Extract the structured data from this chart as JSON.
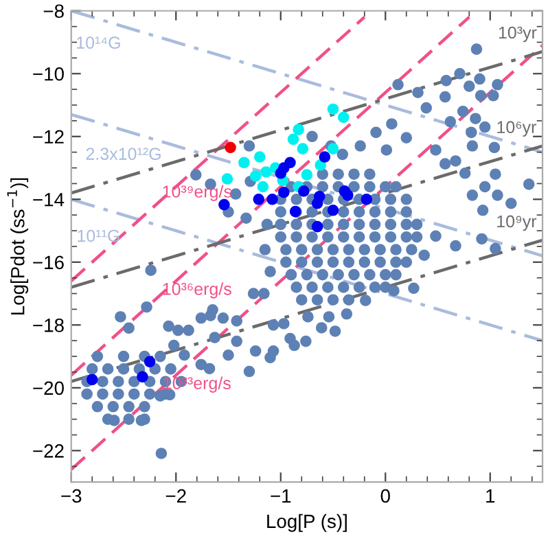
{
  "chart_data": {
    "type": "scatter",
    "xlabel": "Log[P (s)]",
    "ylabel": "Log[Pdot (ss$^{−1}$)]",
    "xlim": [
      -3,
      1.5
    ],
    "ylim": [
      -23,
      -8
    ],
    "xticks": [
      -3,
      -2,
      -1,
      0,
      1
    ],
    "yticks": [
      -22,
      -20,
      -18,
      -16,
      -14,
      -12,
      -10,
      -8
    ],
    "grid": false,
    "legend": false,
    "series": [
      {
        "type": "line",
        "line_style": "dashdot",
        "color": "#a9bbdd",
        "x": [
          -3,
          1.5
        ],
        "values": [
          -8.0,
          -12.5
        ]
      },
      {
        "type": "line",
        "line_style": "dashdot",
        "color": "#a9bbdd",
        "x": [
          -3,
          1.5
        ],
        "values": [
          -11.3,
          -15.8
        ]
      },
      {
        "type": "line",
        "line_style": "dashdot",
        "color": "#a9bbdd",
        "x": [
          -3,
          1.5
        ],
        "values": [
          -14.0,
          -18.5
        ]
      },
      {
        "type": "line",
        "line_style": "dashed",
        "color": "#f0508a",
        "x": [
          -3,
          -0.2
        ],
        "values": [
          -16.6,
          -8.2
        ]
      },
      {
        "type": "line",
        "line_style": "dashed",
        "color": "#f0508a",
        "x": [
          -3,
          0.8
        ],
        "values": [
          -19.6,
          -8.2
        ]
      },
      {
        "type": "line",
        "line_style": "dashed",
        "color": "#f0508a",
        "x": [
          -3,
          1.5
        ],
        "values": [
          -22.6,
          -9.1
        ]
      },
      {
        "type": "line",
        "line_style": "dashdot",
        "color": "#6b6b6b",
        "x": [
          -3,
          1.5
        ],
        "values": [
          -13.8,
          -9.3
        ]
      },
      {
        "type": "line",
        "line_style": "dashdot",
        "color": "#6b6b6b",
        "x": [
          -3,
          1.5
        ],
        "values": [
          -16.8,
          -12.3
        ]
      },
      {
        "type": "line",
        "line_style": "dashdot",
        "color": "#6b6b6b",
        "x": [
          -3,
          1.5
        ],
        "values": [
          -19.8,
          -15.3
        ]
      },
      {
        "marker": "circle",
        "color": "#5e81b5",
        "x": [
          -0.6,
          -0.45,
          -0.3,
          -0.15,
          -0.9,
          -0.75,
          -0.6,
          -0.45,
          -0.3,
          -0.15,
          0.0,
          0.1,
          -1.0,
          -0.85,
          -0.7,
          -0.55,
          -0.4,
          -0.25,
          -0.1,
          0.05,
          0.2,
          -1.0,
          -0.85,
          -0.7,
          -0.55,
          -0.4,
          -0.25,
          -0.1,
          0.05,
          0.2,
          -1.0,
          -0.85,
          -0.7,
          -0.55,
          -0.4,
          -0.25,
          -0.1,
          0.05,
          0.2,
          0.3,
          -1.0,
          -0.85,
          -0.7,
          -0.55,
          -0.4,
          -0.25,
          -0.1,
          0.05,
          0.2,
          0.3,
          -0.95,
          -0.8,
          -0.65,
          -0.5,
          -0.35,
          -0.2,
          -0.05,
          0.1,
          0.25,
          -0.95,
          -0.8,
          -0.65,
          -0.5,
          -0.35,
          -0.2,
          -0.05,
          0.1,
          0.2,
          -0.9,
          -0.75,
          -0.6,
          -0.45,
          -0.3,
          -0.15,
          0.0,
          0.1,
          -0.85,
          -0.7,
          -0.55,
          -0.4,
          -0.25,
          -0.1,
          0.0,
          -0.8,
          -0.65,
          -0.5,
          -0.35,
          -1.13,
          -1.15,
          -1.1,
          0.87,
          0.71,
          0.58,
          0.8,
          0.9,
          1.07,
          1.03,
          0.91,
          0.57,
          0.31,
          0.12,
          0.39,
          0.74,
          0.86,
          0.62,
          0.82,
          0.95,
          0.83,
          1.04,
          0.06,
          0.2,
          -0.09,
          -0.24,
          0.01,
          0.48,
          0.67,
          0.57,
          0.76,
          1.05,
          1.37,
          0.95,
          0.93,
          0.83,
          -0.7,
          -0.52,
          -0.41,
          1.07,
          1.2,
          0.92,
          1.05,
          0.67,
          0.37,
          0.48,
          -1.3,
          -1.81,
          -1.67,
          -1.43,
          -1.29,
          -1.5,
          -1.33,
          -2.24,
          -2.75,
          -2.5,
          -2.3,
          -2.15,
          -2.8,
          -2.65,
          -2.5,
          -2.35,
          -2.2,
          -2.05,
          -2.85,
          -2.7,
          -2.55,
          -2.4,
          -2.25,
          -2.1,
          -1.95,
          -2.85,
          -2.7,
          -2.55,
          -2.4,
          -2.25,
          -2.1,
          -2.75,
          -2.6,
          -2.45,
          -2.3,
          -2.65,
          -2.45,
          -2.3,
          -2.28,
          -2.53,
          -2.45,
          -2.07,
          -1.98,
          -1.88,
          -1.76,
          -1.65,
          -1.67,
          -1.55,
          -1.42,
          -1.26,
          -1.16,
          -1.63,
          -1.42,
          -1.24,
          -1.5,
          -1.76,
          -1.92,
          -2.02,
          -1.68,
          -1.3,
          -1.1,
          -2.15,
          -2.06,
          -2.14,
          -2.33,
          -2.59,
          -1.07,
          -0.97,
          -0.91,
          -0.87,
          -0.76,
          -0.61,
          -0.48,
          -0.54,
          -0.37,
          -0.19,
          0.08,
          0.27,
          -0.74,
          -1.07
        ],
        "values": [
          -13.2,
          -13.2,
          -13.2,
          -13.2,
          -13.6,
          -13.6,
          -13.6,
          -13.6,
          -13.6,
          -13.6,
          -13.6,
          -13.6,
          -14.0,
          -14.0,
          -14.0,
          -14.0,
          -14.0,
          -14.0,
          -14.0,
          -14.0,
          -14.0,
          -14.4,
          -14.4,
          -14.4,
          -14.4,
          -14.4,
          -14.4,
          -14.4,
          -14.4,
          -14.4,
          -14.8,
          -14.8,
          -14.8,
          -14.8,
          -14.8,
          -14.8,
          -14.8,
          -14.8,
          -14.8,
          -14.8,
          -15.2,
          -15.2,
          -15.2,
          -15.2,
          -15.2,
          -15.2,
          -15.2,
          -15.2,
          -15.2,
          -15.2,
          -15.6,
          -15.6,
          -15.6,
          -15.6,
          -15.6,
          -15.6,
          -15.6,
          -15.6,
          -15.6,
          -16.0,
          -16.0,
          -16.0,
          -16.0,
          -16.0,
          -16.0,
          -16.0,
          -16.0,
          -16.0,
          -16.4,
          -16.4,
          -16.4,
          -16.4,
          -16.4,
          -16.4,
          -16.4,
          -16.4,
          -16.8,
          -16.8,
          -16.8,
          -16.8,
          -16.8,
          -16.8,
          -16.8,
          -17.2,
          -17.2,
          -17.2,
          -17.2,
          -14.8,
          -15.6,
          -16.3,
          -9.22,
          -10.0,
          -10.22,
          -10.4,
          -10.17,
          -10.35,
          -10.7,
          -10.7,
          -10.74,
          -10.6,
          -10.35,
          -11.09,
          -11.2,
          -11.43,
          -11.53,
          -11.87,
          -11.7,
          -12.3,
          -12.35,
          -11.6,
          -12.04,
          -11.87,
          -12.3,
          -12.43,
          -12.43,
          -12.78,
          -12.87,
          -13.17,
          -13.2,
          -13.52,
          -13.6,
          -14.35,
          -13.87,
          -12.0,
          -12.3,
          -12.57,
          -13.87,
          -14.13,
          -15.26,
          -15.57,
          -15.48,
          -15.78,
          -15.17,
          -12.3,
          -13.22,
          -13.52,
          -13.83,
          -13.43,
          -14.4,
          -14.6,
          -16.26,
          -19.0,
          -19.0,
          -19.0,
          -19.0,
          -19.4,
          -19.4,
          -19.4,
          -19.4,
          -19.4,
          -19.4,
          -19.8,
          -19.8,
          -19.8,
          -19.8,
          -19.8,
          -19.8,
          -19.8,
          -20.2,
          -20.2,
          -20.2,
          -20.2,
          -20.2,
          -20.2,
          -20.6,
          -20.6,
          -20.6,
          -20.6,
          -21.0,
          -21.0,
          -21.0,
          -17.43,
          -17.74,
          -18.1,
          -18.04,
          -18.17,
          -18.17,
          -17.78,
          -17.52,
          -17.7,
          -17.78,
          -17.87,
          -17.0,
          -17.0,
          -18.4,
          -18.52,
          -18.83,
          -18.96,
          -19.26,
          -18.96,
          -18.65,
          -19.39,
          -19.48,
          -19.04,
          -20.26,
          -20.22,
          -22.09,
          -21.04,
          -21.04,
          -18.0,
          -17.96,
          -18.43,
          -18.65,
          -18.52,
          -18.09,
          -18.2,
          -17.74,
          -17.65,
          -17.22,
          -16.91,
          -16.83,
          -17.74,
          -18.83
        ]
      },
      {
        "marker": "circle",
        "color": "#00f0f0",
        "x": [
          -1.51,
          -1.35,
          -1.2,
          -1.14,
          -1.17,
          -1.24,
          -0.5,
          -0.4,
          -0.83,
          -0.88,
          -0.79,
          -0.5,
          -0.62,
          -0.75,
          -0.83,
          -1.05,
          -0.98
        ],
        "values": [
          -13.35,
          -12.83,
          -12.65,
          -13.13,
          -13.6,
          -13.26,
          -11.13,
          -11.39,
          -11.78,
          -12.09,
          -12.39,
          -12.39,
          -12.91,
          -13.22,
          -13.6,
          -13.0,
          -13.4
        ]
      },
      {
        "marker": "circle",
        "color": "#0000ee",
        "x": [
          -0.58,
          -0.91,
          -0.97,
          -1.0,
          -0.97,
          -0.78,
          -0.39,
          -0.36,
          -0.18,
          -0.63,
          -0.65,
          -0.5,
          -0.86,
          -0.65,
          -1.21,
          -1.54,
          -1.08,
          -2.8,
          -2.32,
          -2.25
        ],
        "values": [
          -12.65,
          -12.83,
          -13.0,
          -13.17,
          -13.78,
          -13.74,
          -13.74,
          -13.87,
          -14.0,
          -13.91,
          -14.13,
          -14.35,
          -14.39,
          -14.87,
          -14.0,
          -14.17,
          -14.0,
          -19.74,
          -19.65,
          -19.17
        ]
      },
      {
        "marker": "circle",
        "color": "#ee0000",
        "x": [
          -1.48
        ],
        "values": [
          -12.35
        ]
      }
    ],
    "annotations": [
      "10¹⁴G",
      "2.3x10¹²G",
      "10¹¹G",
      "10³⁹erg/s",
      "10³⁶erg/s",
      "10³³erg/s",
      "10³yr",
      "10⁶yr",
      "10⁹yr"
    ]
  }
}
